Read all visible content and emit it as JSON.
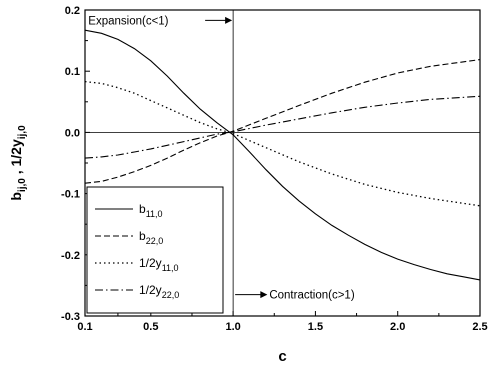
{
  "chart_data": {
    "type": "line",
    "xlabel": "c",
    "ylabel": {
      "parts": [
        {
          "text": "b",
          "sub": false
        },
        {
          "text": "ij,0",
          "sub": true
        },
        {
          "text": " , 1/2y",
          "sub": false
        },
        {
          "text": "ij,0",
          "sub": true
        }
      ]
    },
    "xlim": [
      0.1,
      2.5
    ],
    "ylim": [
      -0.3,
      0.2
    ],
    "xticks": [
      0.1,
      0.5,
      1.0,
      1.5,
      2.0,
      2.5
    ],
    "xtick_labels": [
      "0.1",
      "0.5",
      "1.0",
      "1.5",
      "2.0",
      "2.5"
    ],
    "yticks": [
      -0.3,
      -0.2,
      -0.1,
      0.0,
      0.1,
      0.2
    ],
    "ytick_labels": [
      "-0.3",
      "-0.2",
      "-0.1",
      "0.0",
      "0.1",
      "0.2"
    ],
    "grid": false,
    "reference_lines": [
      {
        "axis": "y",
        "value": 0.0
      },
      {
        "axis": "x",
        "value": 1.0
      }
    ],
    "annotations": [
      {
        "text": "Expansion(c<1)",
        "x": 0.12,
        "y": 0.183,
        "arrow_to_x": 1.0,
        "arrow": "right"
      },
      {
        "text": "Contraction(c>1)",
        "x": 1.22,
        "y": -0.265,
        "arrow_from_x": 1.0,
        "arrow": "right"
      }
    ],
    "legend_position": "lower-left",
    "series": [
      {
        "name": "b11,0",
        "label_main": "b",
        "label_sub": "11,0",
        "style": "solid",
        "x": [
          0.1,
          0.2,
          0.3,
          0.4,
          0.5,
          0.6,
          0.7,
          0.8,
          0.9,
          1.0,
          1.1,
          1.2,
          1.3,
          1.4,
          1.5,
          1.6,
          1.7,
          1.8,
          1.9,
          2.0,
          2.1,
          2.2,
          2.3,
          2.4,
          2.5
        ],
        "y": [
          0.167,
          0.162,
          0.152,
          0.137,
          0.117,
          0.092,
          0.064,
          0.038,
          0.016,
          -0.004,
          -0.032,
          -0.061,
          -0.088,
          -0.112,
          -0.133,
          -0.152,
          -0.168,
          -0.183,
          -0.196,
          -0.207,
          -0.216,
          -0.224,
          -0.231,
          -0.236,
          -0.241
        ]
      },
      {
        "name": "b22,0",
        "label_main": "b",
        "label_sub": "22,0",
        "style": "dashed",
        "x": [
          0.1,
          0.2,
          0.3,
          0.4,
          0.5,
          0.6,
          0.7,
          0.8,
          0.9,
          1.0,
          1.2,
          1.4,
          1.6,
          1.8,
          2.0,
          2.2,
          2.5
        ],
        "y": [
          -0.083,
          -0.08,
          -0.073,
          -0.064,
          -0.054,
          -0.042,
          -0.029,
          -0.017,
          -0.006,
          0.002,
          0.023,
          0.044,
          0.064,
          0.082,
          0.097,
          0.108,
          0.119
        ]
      },
      {
        "name": "1/2y11,0",
        "label_main": "1/2y",
        "label_sub": "11,0",
        "style": "dotted",
        "x": [
          0.1,
          0.2,
          0.3,
          0.4,
          0.5,
          0.6,
          0.7,
          0.8,
          0.9,
          1.0,
          1.2,
          1.4,
          1.6,
          1.8,
          2.0,
          2.2,
          2.5
        ],
        "y": [
          0.083,
          0.08,
          0.073,
          0.064,
          0.052,
          0.04,
          0.028,
          0.016,
          0.006,
          -0.002,
          -0.025,
          -0.048,
          -0.068,
          -0.085,
          -0.098,
          -0.108,
          -0.12
        ]
      },
      {
        "name": "1/2y22,0",
        "label_main": "1/2y",
        "label_sub": "22,0",
        "style": "dashdot",
        "x": [
          0.1,
          0.2,
          0.3,
          0.4,
          0.5,
          0.6,
          0.7,
          0.8,
          0.9,
          1.0,
          1.2,
          1.4,
          1.6,
          1.8,
          2.0,
          2.2,
          2.5
        ],
        "y": [
          -0.042,
          -0.04,
          -0.037,
          -0.032,
          -0.027,
          -0.021,
          -0.015,
          -0.009,
          -0.003,
          0.001,
          0.012,
          0.022,
          0.032,
          0.041,
          0.048,
          0.054,
          0.059
        ]
      }
    ]
  }
}
